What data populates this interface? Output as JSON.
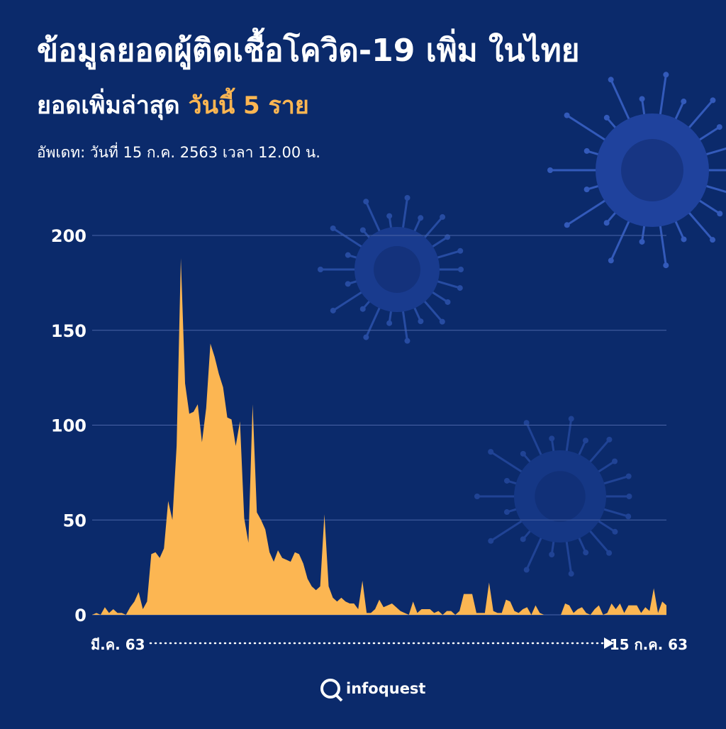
{
  "header": {
    "title": "ข้อมูลยอดผู้ติดเชื้อโควิด-19 เพิ่ม ในไทย",
    "subtitle": "ยอดเพิ่มล่าสุด",
    "subtitle_highlight": "วันนี้ 5 ราย",
    "updated": "อัพเดท: วันที่ 15 ก.ค. 2563 เวลา 12.00 น."
  },
  "chart_data": {
    "type": "area",
    "color": "#fcb652",
    "grid": true,
    "ylim": [
      0,
      200
    ],
    "yticks": [
      0,
      50,
      100,
      150,
      200
    ],
    "categories": [
      "มี.ค. 63",
      null,
      null,
      null,
      null,
      null,
      null,
      null,
      null,
      null,
      null,
      null,
      null,
      null,
      null,
      null,
      null,
      null,
      null,
      null,
      null,
      null,
      null,
      null,
      null,
      null,
      null,
      null,
      null,
      null,
      null,
      null,
      null,
      null,
      null,
      null,
      null,
      null,
      null,
      null,
      null,
      null,
      null,
      null,
      null,
      null,
      null,
      null,
      null,
      null,
      null,
      null,
      null,
      null,
      null,
      null,
      null,
      null,
      null,
      null,
      null,
      null,
      null,
      null,
      null,
      null,
      null,
      null,
      null,
      null,
      null,
      null,
      null,
      null,
      null,
      null,
      null,
      null,
      null,
      null,
      null,
      null,
      null,
      null,
      null,
      null,
      null,
      null,
      null,
      null,
      null,
      null,
      null,
      null,
      null,
      null,
      null,
      null,
      null,
      null,
      null,
      null,
      null,
      null,
      null,
      null,
      null,
      null,
      null,
      null,
      null,
      null,
      null,
      null,
      null,
      null,
      null,
      null,
      null,
      null,
      null,
      null,
      null,
      null,
      null,
      null,
      null,
      null,
      null,
      null,
      null,
      null,
      null,
      null,
      null,
      null,
      "15 ก.ค. 63"
    ],
    "values": [
      0,
      1,
      0,
      4,
      1,
      3,
      1,
      1,
      0,
      4,
      7,
      12,
      3,
      7,
      32,
      33,
      30,
      35,
      60,
      50,
      89,
      188,
      122,
      106,
      107,
      111,
      91,
      109,
      143,
      136,
      127,
      120,
      104,
      103,
      89,
      102,
      51,
      38,
      111,
      54,
      50,
      45,
      33,
      28,
      34,
      30,
      29,
      28,
      33,
      32,
      27,
      19,
      15,
      13,
      15,
      53,
      15,
      9,
      7,
      9,
      7,
      6,
      6,
      3,
      18,
      1,
      1,
      3,
      8,
      4,
      5,
      6,
      4,
      2,
      1,
      0,
      7,
      1,
      3,
      3,
      3,
      1,
      2,
      0,
      2,
      2,
      0,
      2,
      11,
      11,
      11,
      1,
      1,
      1,
      17,
      2,
      1,
      1,
      8,
      7,
      2,
      1,
      3,
      4,
      0,
      5,
      1,
      0,
      0,
      0,
      0,
      0,
      6,
      5,
      1,
      3,
      4,
      1,
      0,
      3,
      5,
      0,
      1,
      6,
      3,
      6,
      1,
      5,
      5,
      5,
      1,
      4,
      2,
      14,
      1,
      7,
      5
    ]
  },
  "footer": {
    "logo": "infoquest"
  }
}
